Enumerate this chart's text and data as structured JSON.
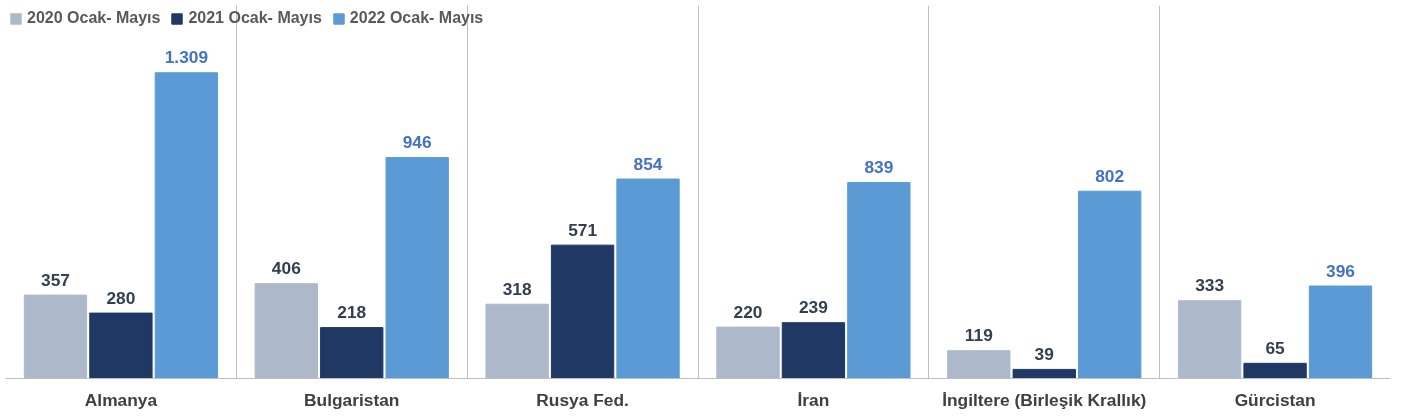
{
  "chart_data": {
    "type": "bar",
    "categories": [
      "Almanya",
      "Bulgaristan",
      "Rusya Fed.",
      "İran",
      "İngiltere (Birleşik Krallık)",
      "Gürcistan"
    ],
    "series": [
      {
        "name": "2020 Ocak- Mayıs",
        "color": "#adb9ca",
        "values": [
          357,
          406,
          318,
          220,
          119,
          333
        ],
        "value_labels": [
          "357",
          "406",
          "318",
          "220",
          "119",
          "333"
        ]
      },
      {
        "name": "2021 Ocak- Mayıs",
        "color": "#203864",
        "values": [
          280,
          218,
          571,
          239,
          39,
          65
        ],
        "value_labels": [
          "280",
          "218",
          "571",
          "239",
          "39",
          "65"
        ]
      },
      {
        "name": "2022 Ocak- Mayıs",
        "color": "#5b9bd5",
        "values": [
          1309,
          946,
          854,
          839,
          802,
          396
        ],
        "value_labels": [
          "1.309",
          "946",
          "854",
          "839",
          "802",
          "396"
        ]
      }
    ],
    "legend": "top left",
    "grid": "x"
  }
}
